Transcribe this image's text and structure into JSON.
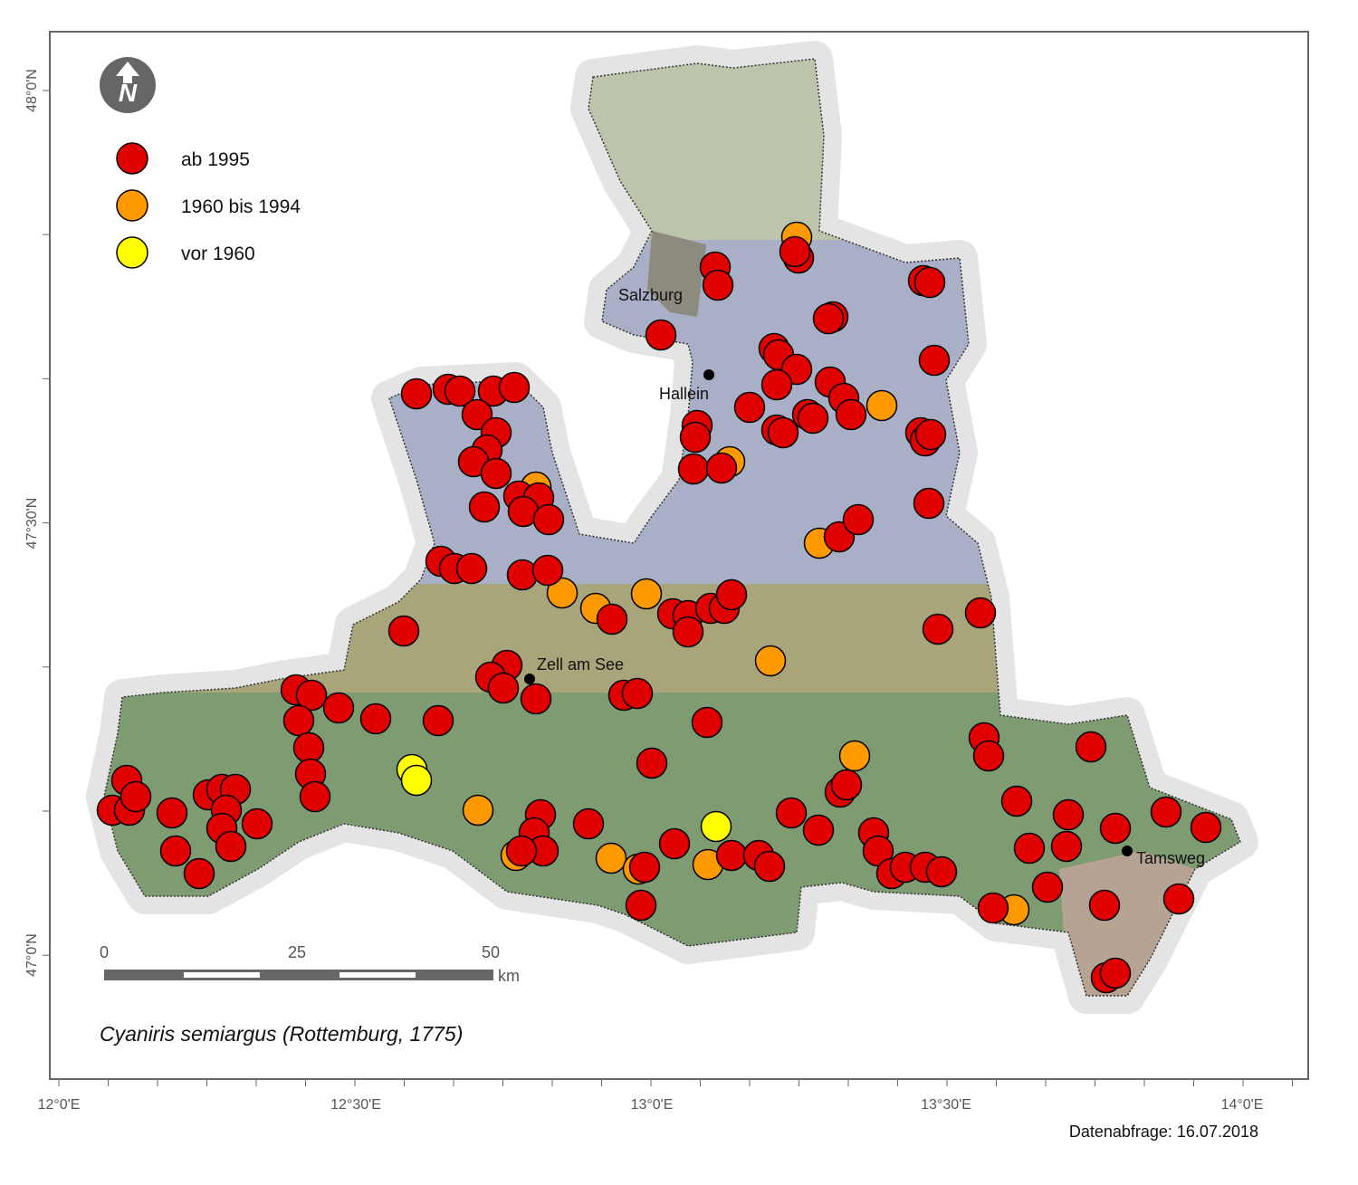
{
  "north": "N",
  "legend": [
    {
      "name": "ab 1995",
      "color": "#e00000"
    },
    {
      "name": "1960 bis 1994",
      "color": "#ff9900"
    },
    {
      "name": "vor 1960",
      "color": "#ffff00"
    }
  ],
  "towns": [
    "Salzburg",
    "Hallein",
    "Zell am See",
    "Tamsweg"
  ],
  "x_labels": [
    "12°0'E",
    "12°30'E",
    "13°0'E",
    "13°30'E",
    "14°0'E"
  ],
  "y_labels": [
    "48°0'N",
    "47°30'N",
    "47°0'N"
  ],
  "scale": {
    "labels": [
      "0",
      "25",
      "50"
    ],
    "unit": "km"
  },
  "species": "Cyaniris semiargus (Rottemburg, 1775)",
  "date": "Datenabfrage: 16.07.2018"
}
